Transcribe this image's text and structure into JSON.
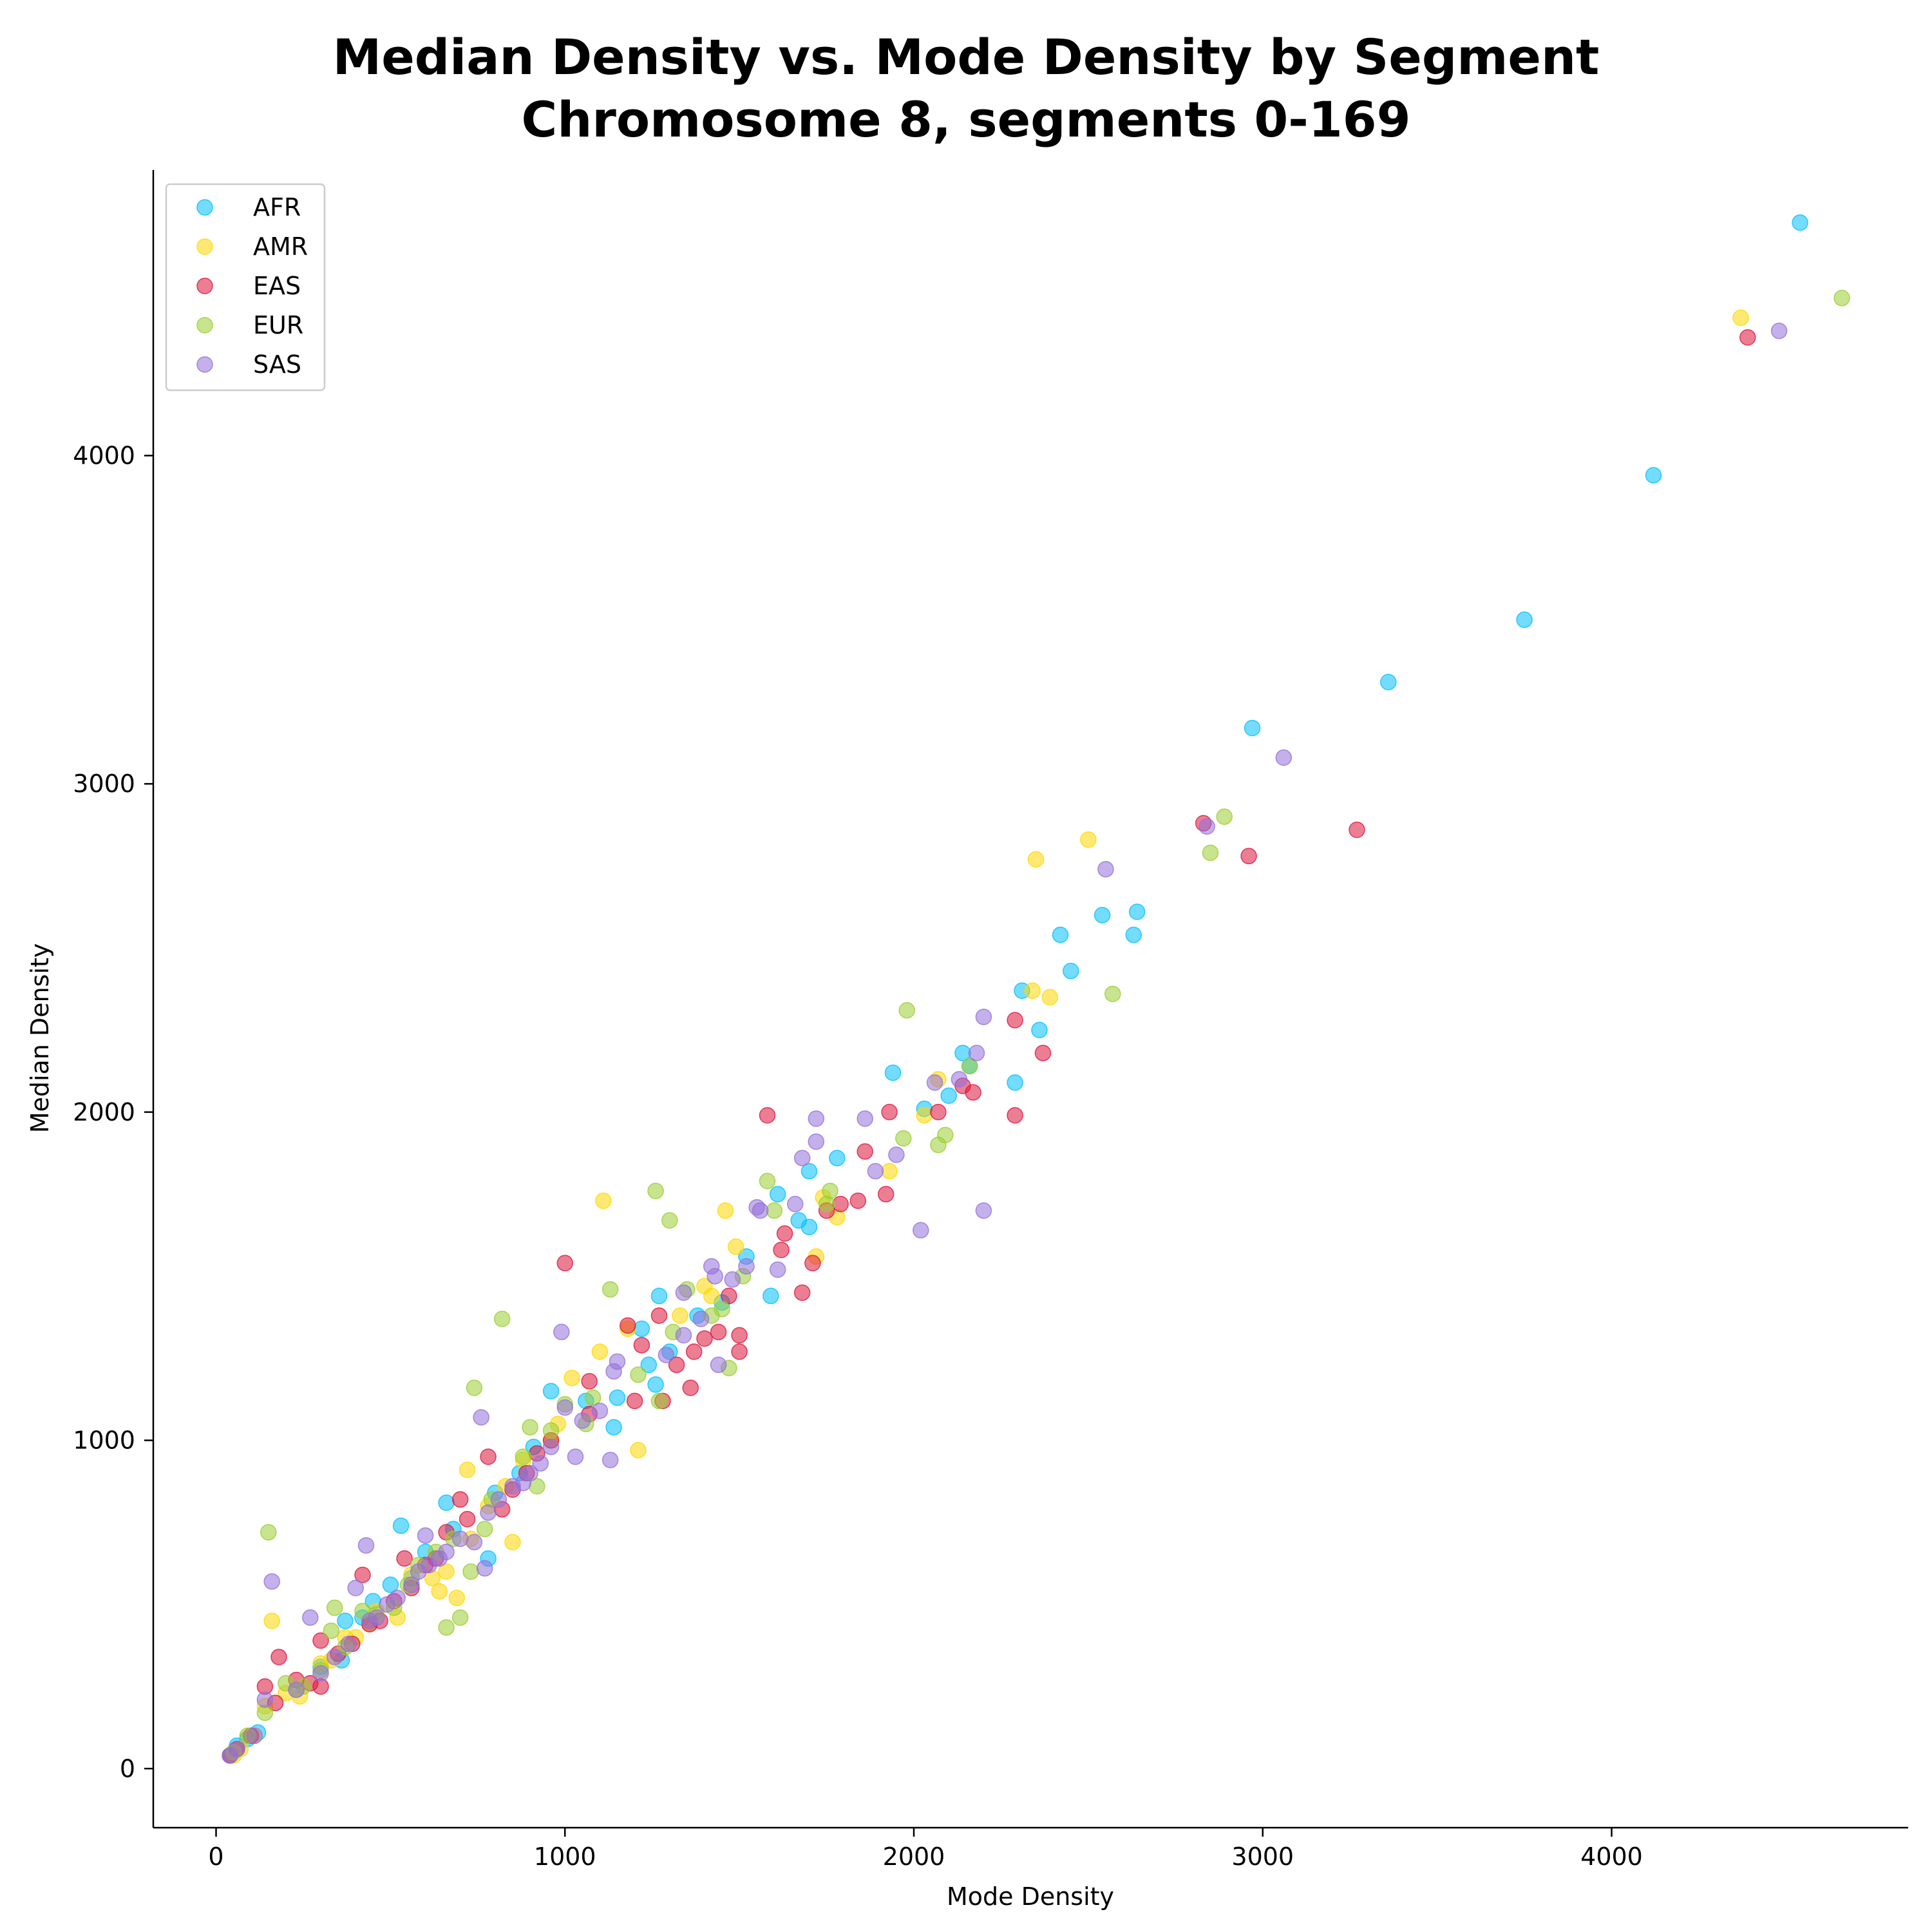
{
  "chart_data": {
    "type": "scatter",
    "title": "Median Density vs. Mode Density by Segment",
    "subtitle": "Chromosome 8, segments 0-169",
    "xlabel": "Mode Density",
    "ylabel": "Median Density",
    "xlim": [
      -180,
      4850
    ],
    "ylim": [
      -180,
      4870
    ],
    "xticks": [
      0,
      1000,
      2000,
      3000,
      4000
    ],
    "yticks": [
      0,
      1000,
      2000,
      3000,
      4000
    ],
    "xtick_labels": [
      "0",
      "1000",
      "2000",
      "3000",
      "4000"
    ],
    "ytick_labels": [
      "0",
      "1000",
      "2000",
      "3000",
      "4000"
    ],
    "grid": false,
    "legend_position": "top-left",
    "series": [
      {
        "name": "AFR",
        "color": "#00BFFF",
        "points": [
          [
            4540,
            4710
          ],
          [
            4120,
            3940
          ],
          [
            3750,
            3500
          ],
          [
            3360,
            3310
          ],
          [
            2970,
            3170
          ],
          [
            2640,
            2610
          ],
          [
            2540,
            2600
          ],
          [
            2630,
            2540
          ],
          [
            2420,
            2540
          ],
          [
            2450,
            2430
          ],
          [
            2310,
            2370
          ],
          [
            2360,
            2250
          ],
          [
            2140,
            2180
          ],
          [
            2160,
            2140
          ],
          [
            1940,
            2120
          ],
          [
            2290,
            2090
          ],
          [
            2100,
            2050
          ],
          [
            2030,
            2010
          ],
          [
            1780,
            1860
          ],
          [
            1610,
            1750
          ],
          [
            1700,
            1820
          ],
          [
            1670,
            1670
          ],
          [
            1700,
            1650
          ],
          [
            1590,
            1440
          ],
          [
            1520,
            1560
          ],
          [
            1450,
            1420
          ],
          [
            1380,
            1380
          ],
          [
            1270,
            1440
          ],
          [
            1220,
            1340
          ],
          [
            1240,
            1230
          ],
          [
            1300,
            1270
          ],
          [
            1260,
            1170
          ],
          [
            1150,
            1130
          ],
          [
            1140,
            1040
          ],
          [
            1060,
            1120
          ],
          [
            960,
            1150
          ],
          [
            910,
            980
          ],
          [
            870,
            900
          ],
          [
            800,
            840
          ],
          [
            780,
            640
          ],
          [
            660,
            810
          ],
          [
            680,
            730
          ],
          [
            600,
            660
          ],
          [
            530,
            740
          ],
          [
            560,
            580
          ],
          [
            500,
            560
          ],
          [
            450,
            510
          ],
          [
            420,
            460
          ],
          [
            370,
            450
          ],
          [
            360,
            330
          ],
          [
            300,
            310
          ],
          [
            120,
            110
          ],
          [
            90,
            90
          ],
          [
            60,
            70
          ],
          [
            40,
            40
          ]
        ]
      },
      {
        "name": "AMR",
        "color": "#FFD700",
        "points": [
          [
            4370,
            4420
          ],
          [
            2500,
            2830
          ],
          [
            2350,
            2770
          ],
          [
            2390,
            2350
          ],
          [
            2340,
            2370
          ],
          [
            2070,
            2100
          ],
          [
            2030,
            1990
          ],
          [
            1930,
            1820
          ],
          [
            1780,
            1680
          ],
          [
            1740,
            1740
          ],
          [
            1720,
            1560
          ],
          [
            1460,
            1700
          ],
          [
            1490,
            1590
          ],
          [
            1420,
            1440
          ],
          [
            1400,
            1470
          ],
          [
            1330,
            1380
          ],
          [
            1180,
            1340
          ],
          [
            1210,
            970
          ],
          [
            1110,
            1730
          ],
          [
            1100,
            1270
          ],
          [
            1020,
            1190
          ],
          [
            980,
            1050
          ],
          [
            960,
            1000
          ],
          [
            880,
            940
          ],
          [
            850,
            690
          ],
          [
            830,
            860
          ],
          [
            780,
            800
          ],
          [
            730,
            700
          ],
          [
            720,
            910
          ],
          [
            690,
            520
          ],
          [
            660,
            600
          ],
          [
            620,
            580
          ],
          [
            640,
            540
          ],
          [
            560,
            590
          ],
          [
            520,
            460
          ],
          [
            460,
            480
          ],
          [
            440,
            440
          ],
          [
            400,
            400
          ],
          [
            370,
            400
          ],
          [
            330,
            330
          ],
          [
            300,
            320
          ],
          [
            240,
            220
          ],
          [
            200,
            230
          ],
          [
            160,
            450
          ],
          [
            140,
            190
          ],
          [
            110,
            100
          ],
          [
            70,
            60
          ],
          [
            50,
            40
          ]
        ]
      },
      {
        "name": "EAS",
        "color": "#DC143C",
        "points": [
          [
            4390,
            4360
          ],
          [
            3270,
            2860
          ],
          [
            2830,
            2880
          ],
          [
            2960,
            2780
          ],
          [
            2290,
            2280
          ],
          [
            2370,
            2180
          ],
          [
            2290,
            1990
          ],
          [
            2140,
            2080
          ],
          [
            2170,
            2060
          ],
          [
            2070,
            2000
          ],
          [
            1930,
            2000
          ],
          [
            1860,
            1880
          ],
          [
            1920,
            1750
          ],
          [
            1840,
            1730
          ],
          [
            1790,
            1720
          ],
          [
            1750,
            1700
          ],
          [
            1580,
            1990
          ],
          [
            1710,
            1540
          ],
          [
            1680,
            1450
          ],
          [
            1630,
            1630
          ],
          [
            1620,
            1580
          ],
          [
            1500,
            1320
          ],
          [
            1500,
            1270
          ],
          [
            1470,
            1440
          ],
          [
            1440,
            1330
          ],
          [
            1400,
            1310
          ],
          [
            1370,
            1270
          ],
          [
            1360,
            1160
          ],
          [
            1320,
            1230
          ],
          [
            1280,
            1120
          ],
          [
            1270,
            1380
          ],
          [
            1220,
            1290
          ],
          [
            1200,
            1120
          ],
          [
            1180,
            1350
          ],
          [
            1070,
            1080
          ],
          [
            1070,
            1180
          ],
          [
            1000,
            1540
          ],
          [
            960,
            1000
          ],
          [
            920,
            960
          ],
          [
            890,
            900
          ],
          [
            850,
            850
          ],
          [
            820,
            790
          ],
          [
            780,
            950
          ],
          [
            720,
            760
          ],
          [
            700,
            820
          ],
          [
            660,
            720
          ],
          [
            630,
            640
          ],
          [
            600,
            620
          ],
          [
            560,
            550
          ],
          [
            540,
            640
          ],
          [
            510,
            510
          ],
          [
            470,
            450
          ],
          [
            440,
            440
          ],
          [
            420,
            590
          ],
          [
            390,
            380
          ],
          [
            350,
            350
          ],
          [
            300,
            250
          ],
          [
            300,
            390
          ],
          [
            270,
            260
          ],
          [
            230,
            270
          ],
          [
            180,
            340
          ],
          [
            170,
            200
          ],
          [
            140,
            250
          ],
          [
            100,
            100
          ],
          [
            60,
            60
          ],
          [
            40,
            40
          ]
        ]
      },
      {
        "name": "EUR",
        "color": "#9ACD32",
        "points": [
          [
            4660,
            4480
          ],
          [
            2890,
            2900
          ],
          [
            2850,
            2790
          ],
          [
            2570,
            2360
          ],
          [
            1980,
            2310
          ],
          [
            2160,
            2140
          ],
          [
            2090,
            1930
          ],
          [
            2070,
            1900
          ],
          [
            1970,
            1920
          ],
          [
            1760,
            1760
          ],
          [
            1750,
            1720
          ],
          [
            1600,
            1700
          ],
          [
            1580,
            1790
          ],
          [
            1510,
            1500
          ],
          [
            1470,
            1220
          ],
          [
            1450,
            1400
          ],
          [
            1420,
            1380
          ],
          [
            1350,
            1460
          ],
          [
            1310,
            1330
          ],
          [
            1300,
            1670
          ],
          [
            1260,
            1760
          ],
          [
            1270,
            1120
          ],
          [
            1210,
            1200
          ],
          [
            1130,
            1460
          ],
          [
            1080,
            1130
          ],
          [
            1060,
            1050
          ],
          [
            1000,
            1110
          ],
          [
            960,
            1030
          ],
          [
            920,
            860
          ],
          [
            900,
            1040
          ],
          [
            880,
            950
          ],
          [
            820,
            1370
          ],
          [
            790,
            820
          ],
          [
            770,
            730
          ],
          [
            740,
            1160
          ],
          [
            730,
            600
          ],
          [
            700,
            460
          ],
          [
            680,
            700
          ],
          [
            660,
            430
          ],
          [
            630,
            660
          ],
          [
            580,
            620
          ],
          [
            550,
            560
          ],
          [
            510,
            490
          ],
          [
            460,
            470
          ],
          [
            420,
            480
          ],
          [
            370,
            370
          ],
          [
            340,
            490
          ],
          [
            330,
            420
          ],
          [
            300,
            300
          ],
          [
            250,
            250
          ],
          [
            230,
            240
          ],
          [
            200,
            260
          ],
          [
            150,
            720
          ],
          [
            140,
            170
          ],
          [
            90,
            100
          ],
          [
            50,
            50
          ]
        ]
      },
      {
        "name": "SAS",
        "color": "#9370DB",
        "points": [
          [
            4480,
            4380
          ],
          [
            3060,
            3080
          ],
          [
            2840,
            2870
          ],
          [
            2550,
            2740
          ],
          [
            2200,
            2290
          ],
          [
            2180,
            2180
          ],
          [
            2130,
            2100
          ],
          [
            2060,
            2090
          ],
          [
            2200,
            1700
          ],
          [
            2020,
            1640
          ],
          [
            1950,
            1870
          ],
          [
            1860,
            1980
          ],
          [
            1890,
            1820
          ],
          [
            1720,
            1980
          ],
          [
            1720,
            1910
          ],
          [
            1680,
            1860
          ],
          [
            1660,
            1720
          ],
          [
            1560,
            1700
          ],
          [
            1550,
            1710
          ],
          [
            1610,
            1520
          ],
          [
            1520,
            1530
          ],
          [
            1480,
            1490
          ],
          [
            1430,
            1500
          ],
          [
            1420,
            1530
          ],
          [
            1440,
            1230
          ],
          [
            1390,
            1370
          ],
          [
            1340,
            1450
          ],
          [
            1340,
            1320
          ],
          [
            1290,
            1260
          ],
          [
            1150,
            1240
          ],
          [
            1140,
            1210
          ],
          [
            1130,
            940
          ],
          [
            1100,
            1090
          ],
          [
            1050,
            1060
          ],
          [
            1030,
            950
          ],
          [
            1000,
            1100
          ],
          [
            990,
            1330
          ],
          [
            960,
            980
          ],
          [
            930,
            930
          ],
          [
            900,
            900
          ],
          [
            880,
            870
          ],
          [
            850,
            860
          ],
          [
            810,
            820
          ],
          [
            780,
            780
          ],
          [
            770,
            610
          ],
          [
            760,
            1070
          ],
          [
            740,
            690
          ],
          [
            700,
            700
          ],
          [
            660,
            660
          ],
          [
            640,
            640
          ],
          [
            610,
            620
          ],
          [
            600,
            710
          ],
          [
            580,
            600
          ],
          [
            560,
            560
          ],
          [
            520,
            520
          ],
          [
            490,
            500
          ],
          [
            460,
            460
          ],
          [
            440,
            450
          ],
          [
            430,
            680
          ],
          [
            400,
            550
          ],
          [
            380,
            380
          ],
          [
            340,
            340
          ],
          [
            300,
            290
          ],
          [
            270,
            460
          ],
          [
            230,
            240
          ],
          [
            160,
            570
          ],
          [
            140,
            210
          ],
          [
            110,
            100
          ],
          [
            60,
            60
          ],
          [
            40,
            40
          ]
        ]
      }
    ]
  }
}
